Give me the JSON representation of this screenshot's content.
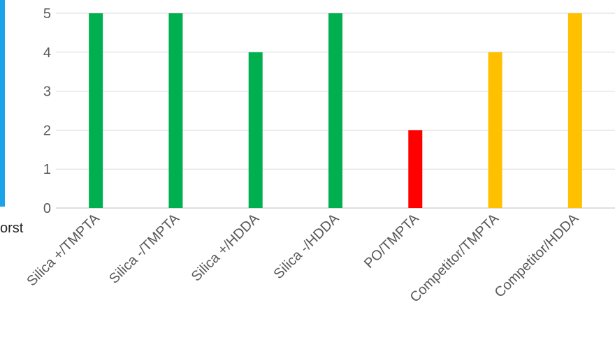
{
  "side_text": "orst",
  "colors": {
    "accent_strip": "#1aa3e8",
    "grid": "#d9d9d9",
    "axis": "#bfbfbf",
    "tick_text": "#595959"
  },
  "chart_data": {
    "type": "bar",
    "title": "",
    "xlabel": "",
    "ylabel": "",
    "ylim": [
      0,
      5
    ],
    "yticks": [
      0,
      1,
      2,
      3,
      4,
      5
    ],
    "grid": true,
    "legend": "none",
    "categories": [
      "Silica +/TMPTA",
      "Silica -/TMPTA",
      "Silica +/HDDA",
      "Silica -/HDDA",
      "PO/TMPTA",
      "Competitor/TMPTA",
      "Competitor/HDDA"
    ],
    "values": [
      5,
      5,
      4,
      5,
      2,
      4,
      5
    ],
    "bar_colors": [
      "#00b050",
      "#00b050",
      "#00b050",
      "#00b050",
      "#ff0000",
      "#ffc000",
      "#ffc000"
    ]
  }
}
